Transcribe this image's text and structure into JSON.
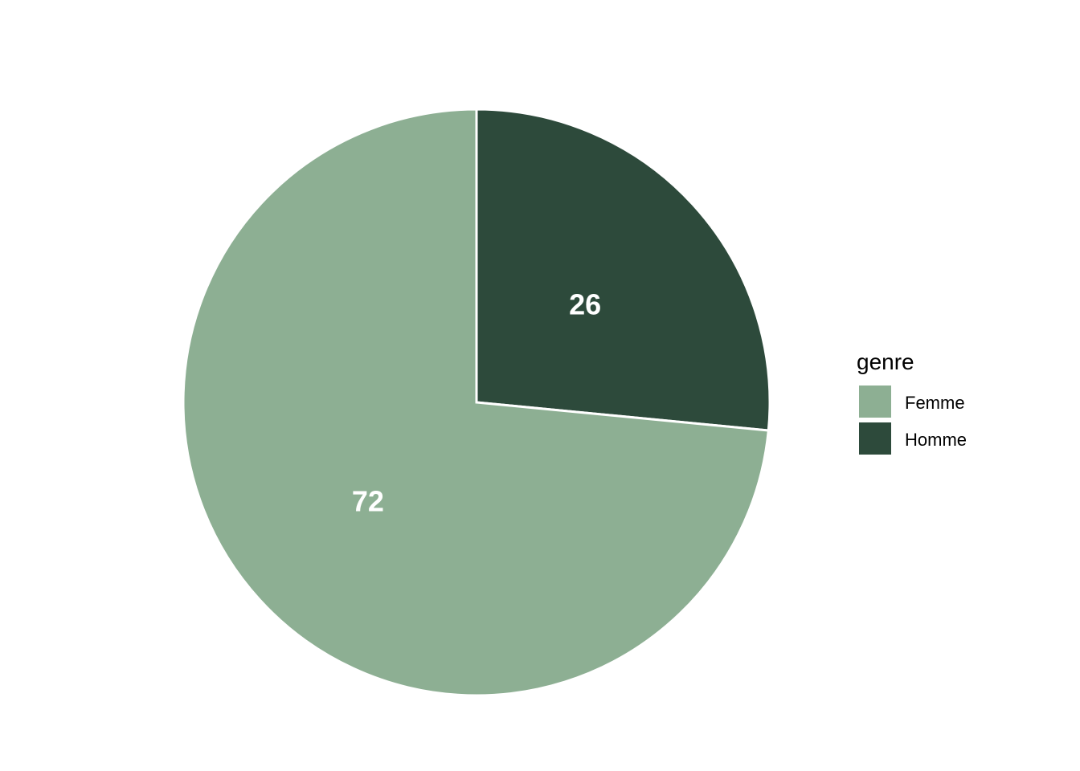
{
  "chart_data": {
    "type": "pie",
    "categories": [
      "Femme",
      "Homme"
    ],
    "values": [
      72,
      26
    ],
    "labels": [
      "72",
      "26"
    ],
    "colors": [
      "#8daf93",
      "#2d4a3b"
    ],
    "legend": {
      "title": "genre",
      "position": "right",
      "entries": [
        "Femme",
        "Homme"
      ]
    },
    "title": "",
    "slice_border_color": "#ffffff"
  }
}
